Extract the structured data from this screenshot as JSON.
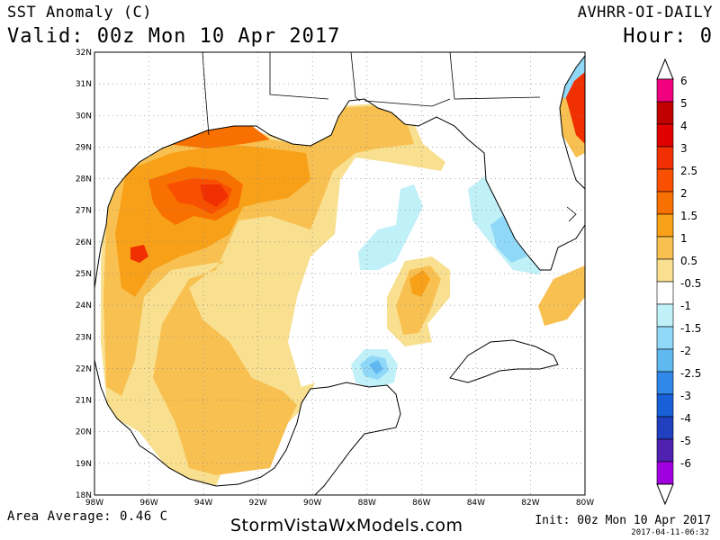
{
  "header": {
    "title": "SST Anomaly (C)",
    "valid": "Valid: 00z Mon 10 Apr 2017",
    "model": "AVHRR-OI-DAILY",
    "hour": "Hour: 0"
  },
  "footer": {
    "area_average": "Area Average: 0.46 C",
    "site": "StormVistaWxModels.com",
    "init": "Init: 00z Mon 10 Apr 2017",
    "timestamp": "2017-04-11-06:32"
  },
  "map": {
    "region": "Gulf of Mexico",
    "lon_range": [
      -98,
      -80
    ],
    "lat_range": [
      18,
      32
    ],
    "x_ticks": [
      "98W",
      "96W",
      "94W",
      "92W",
      "90W",
      "88W",
      "86W",
      "84W",
      "82W",
      "80W"
    ],
    "y_ticks": [
      "32N",
      "31N",
      "30N",
      "29N",
      "28N",
      "27N",
      "26N",
      "25N",
      "24N",
      "23N",
      "22N",
      "21N",
      "20N",
      "19N",
      "18N"
    ],
    "gridlines": "dotted",
    "anomaly_blobs": [
      {
        "lon": -93.0,
        "lat": 27.5,
        "value": 2.5
      },
      {
        "lon": -96.0,
        "lat": 26.0,
        "value": 2.0
      },
      {
        "lon": -95.0,
        "lat": 28.0,
        "value": 1.8
      },
      {
        "lon": -91.0,
        "lat": 29.0,
        "value": 1.5
      },
      {
        "lon": -87.5,
        "lat": 29.8,
        "value": 1.5
      },
      {
        "lon": -96.5,
        "lat": 23.5,
        "value": 1.2
      },
      {
        "lon": -93.5,
        "lat": 21.0,
        "value": 1.0
      },
      {
        "lon": -93.0,
        "lat": 19.0,
        "value": 1.2
      },
      {
        "lon": -86.0,
        "lat": 24.0,
        "value": 1.5
      },
      {
        "lon": -80.0,
        "lat": 30.0,
        "value": 4.5
      },
      {
        "lon": -86.0,
        "lat": 26.5,
        "value": -1.0
      },
      {
        "lon": -83.5,
        "lat": 26.0,
        "value": -1.2
      },
      {
        "lon": -87.8,
        "lat": 21.9,
        "value": -2.0
      }
    ]
  },
  "colorbar": {
    "labels": [
      "6",
      "5",
      "4",
      "3",
      "2.5",
      "2",
      "1.5",
      "1",
      "0.5",
      "-0.5",
      "-1",
      "-1.5",
      "-2",
      "-2.5",
      "-3",
      "-4",
      "-5",
      "-6"
    ],
    "colors": [
      "#f0007f",
      "#c00000",
      "#e00000",
      "#f03000",
      "#f85000",
      "#f87000",
      "#f8a018",
      "#f8c050",
      "#f8e090",
      "#ffffff",
      "#c0f0f8",
      "#90d8f8",
      "#60b8f0",
      "#3088e8",
      "#1860d8",
      "#2040c0",
      "#5020b0",
      "#a000e0"
    ]
  }
}
